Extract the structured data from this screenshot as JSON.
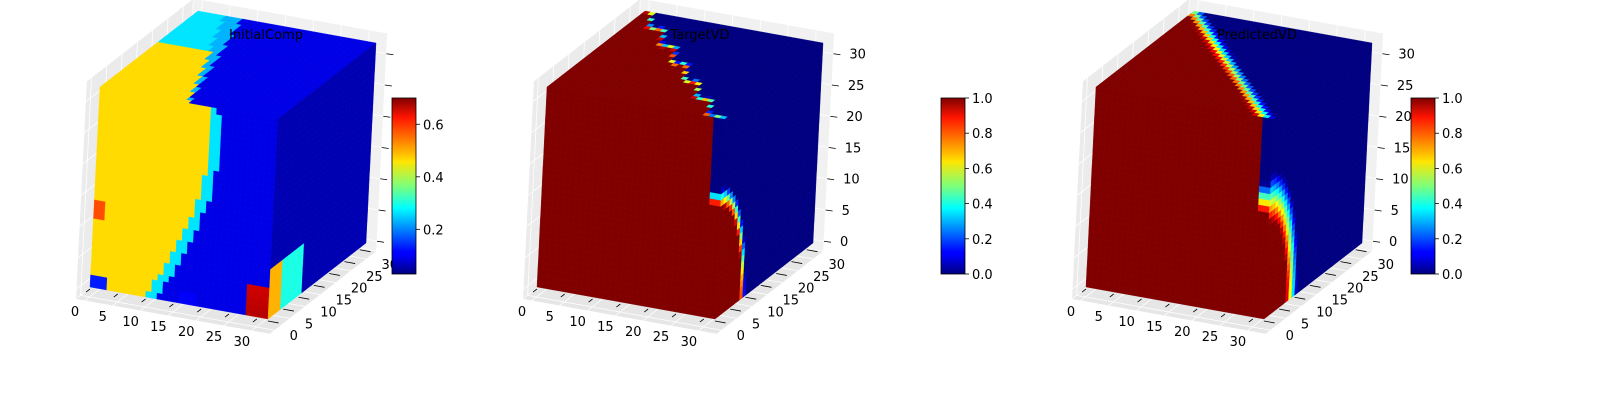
{
  "figure": {
    "colormap": "jet",
    "colors": {
      "pane_left": "#ebebeb",
      "pane_back": "#f1f1f1",
      "pane_floor": "#e6e6e6",
      "background": "#ffffff"
    }
  },
  "chart_data": [
    {
      "type": "heatmap",
      "subtype": "3d-voxel-cube",
      "title": "InitialComp",
      "grid_size": 32,
      "axes": {
        "x_ticks": [
          "0",
          "5",
          "10",
          "15",
          "20",
          "25",
          "30"
        ],
        "y_ticks": [
          "0",
          "5",
          "10",
          "15",
          "20",
          "25",
          "30"
        ],
        "z_ticks": [
          "",
          "",
          "",
          "",
          "",
          "",
          ""
        ],
        "xlim": [
          0,
          32
        ],
        "ylim": [
          0,
          32
        ],
        "zlim": [
          0,
          32
        ]
      },
      "colorbar": {
        "range": [
          0.03,
          0.7
        ],
        "ticks": [
          "0.2",
          "0.4",
          "0.6"
        ],
        "tick_values": [
          0.2,
          0.4,
          0.6
        ]
      },
      "field": {
        "background_value": 0.47,
        "depleted_value": 0.03,
        "depleted_region": "upper-right / back region separated by a curved boundary",
        "hotspot_value": 0.7,
        "hotspot_region": "bottom corner near x=32, y=0..5, z=0..3"
      }
    },
    {
      "type": "heatmap",
      "subtype": "3d-voxel-cube",
      "title": "TargetVD",
      "grid_size": 32,
      "axes": {
        "x_ticks": [
          "0",
          "5",
          "10",
          "15",
          "20",
          "25",
          "30"
        ],
        "y_ticks": [
          "0",
          "5",
          "10",
          "15",
          "20",
          "25",
          "30"
        ],
        "z_ticks": [
          "0",
          "5",
          "10",
          "15",
          "20",
          "25",
          "30"
        ],
        "xlim": [
          0,
          32
        ],
        "ylim": [
          0,
          32
        ],
        "zlim": [
          0,
          32
        ]
      },
      "colorbar": {
        "range": [
          0.0,
          1.0
        ],
        "ticks": [
          "0.0",
          "0.2",
          "0.4",
          "0.6",
          "0.8",
          "1.0"
        ],
        "tick_values": [
          0.0,
          0.2,
          0.4,
          0.6,
          0.8,
          1.0
        ]
      },
      "field": {
        "filled_value": 1.0,
        "empty_value": 0.0,
        "interface": "sharp zig-zag boundary from back-left to front-right corner"
      }
    },
    {
      "type": "heatmap",
      "subtype": "3d-voxel-cube",
      "title": "PredictedVD",
      "grid_size": 32,
      "axes": {
        "x_ticks": [
          "0",
          "5",
          "10",
          "15",
          "20",
          "25",
          "30"
        ],
        "y_ticks": [
          "0",
          "5",
          "10",
          "15",
          "20",
          "25",
          "30"
        ],
        "z_ticks": [
          "0",
          "5",
          "10",
          "15",
          "20",
          "25",
          "30"
        ],
        "xlim": [
          0,
          32
        ],
        "ylim": [
          0,
          32
        ],
        "zlim": [
          0,
          32
        ]
      },
      "colorbar": {
        "range": [
          0.0,
          1.0
        ],
        "ticks": [
          "0.0",
          "0.2",
          "0.4",
          "0.6",
          "0.8",
          "1.0"
        ],
        "tick_values": [
          0.0,
          0.2,
          0.4,
          0.6,
          0.8,
          1.0
        ]
      },
      "field": {
        "filled_value": 1.0,
        "empty_value": 0.0,
        "interface": "smooth curved boundary from back-left to front-right corner"
      }
    }
  ]
}
